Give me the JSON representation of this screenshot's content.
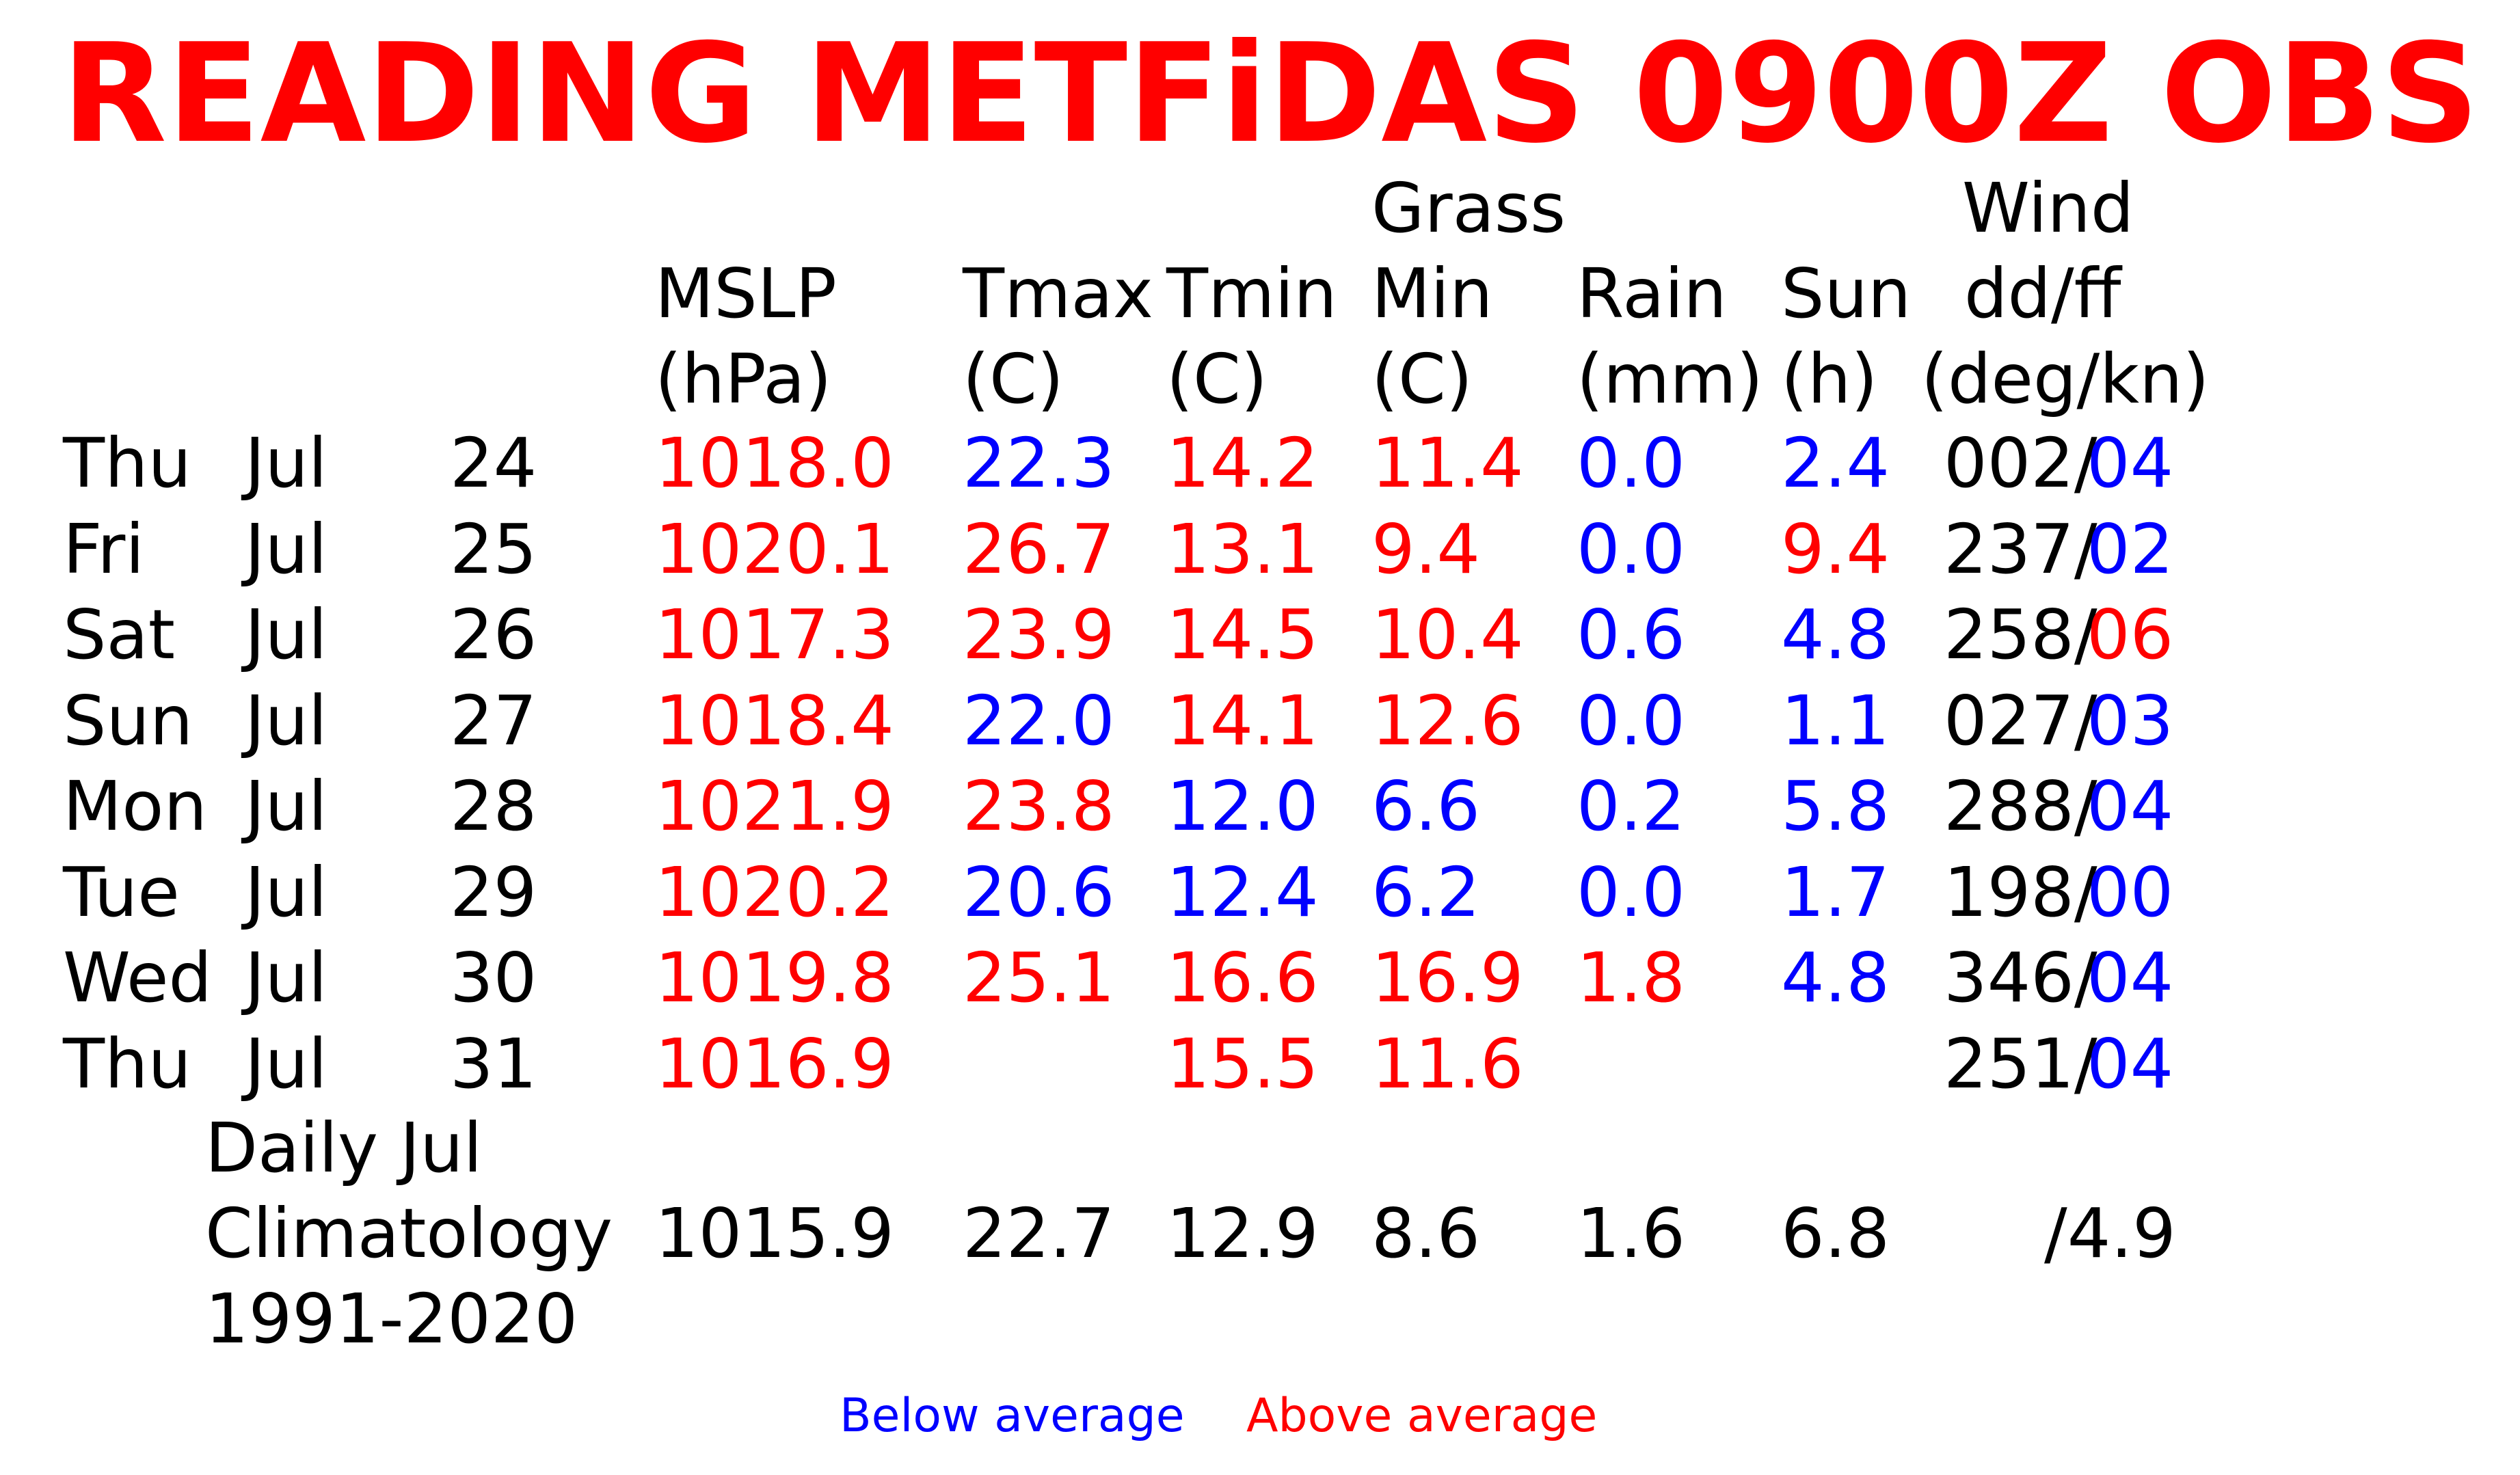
{
  "title": "READING METFiDAS 0900Z OBS",
  "colors": {
    "below": "#0000ff",
    "above": "#ff0000",
    "neutral": "#000000"
  },
  "headers": {
    "mslp": [
      "MSLP",
      "(hPa)"
    ],
    "tmax": [
      "Tmax",
      "(C)"
    ],
    "tmin": [
      "Tmin",
      "(C)"
    ],
    "grass": [
      "Grass",
      "Min",
      "(C)"
    ],
    "rain": [
      "Rain",
      "(mm)"
    ],
    "sun": [
      "Sun",
      "(h)"
    ],
    "wind": [
      "Wind",
      "dd/ff",
      "(deg/kn)"
    ]
  },
  "rows": [
    {
      "dow": "Thu",
      "mon": "Jul",
      "day": "24",
      "mslp": {
        "v": "1018.0",
        "c": "above"
      },
      "tmax": {
        "v": "22.3",
        "c": "below"
      },
      "tmin": {
        "v": "14.2",
        "c": "above"
      },
      "grass": {
        "v": "11.4",
        "c": "above"
      },
      "rain": {
        "v": "0.0",
        "c": "below"
      },
      "sun": {
        "v": "2.4",
        "c": "below"
      },
      "wdir": "002/",
      "wspd": {
        "v": "04",
        "c": "below"
      }
    },
    {
      "dow": "Fri",
      "mon": "Jul",
      "day": "25",
      "mslp": {
        "v": "1020.1",
        "c": "above"
      },
      "tmax": {
        "v": "26.7",
        "c": "above"
      },
      "tmin": {
        "v": "13.1",
        "c": "above"
      },
      "grass": {
        "v": "9.4",
        "c": "above"
      },
      "rain": {
        "v": "0.0",
        "c": "below"
      },
      "sun": {
        "v": "9.4",
        "c": "above"
      },
      "wdir": "237/",
      "wspd": {
        "v": "02",
        "c": "below"
      }
    },
    {
      "dow": "Sat",
      "mon": "Jul",
      "day": "26",
      "mslp": {
        "v": "1017.3",
        "c": "above"
      },
      "tmax": {
        "v": "23.9",
        "c": "above"
      },
      "tmin": {
        "v": "14.5",
        "c": "above"
      },
      "grass": {
        "v": "10.4",
        "c": "above"
      },
      "rain": {
        "v": "0.6",
        "c": "below"
      },
      "sun": {
        "v": "4.8",
        "c": "below"
      },
      "wdir": "258/",
      "wspd": {
        "v": "06",
        "c": "above"
      }
    },
    {
      "dow": "Sun",
      "mon": "Jul",
      "day": "27",
      "mslp": {
        "v": "1018.4",
        "c": "above"
      },
      "tmax": {
        "v": "22.0",
        "c": "below"
      },
      "tmin": {
        "v": "14.1",
        "c": "above"
      },
      "grass": {
        "v": "12.6",
        "c": "above"
      },
      "rain": {
        "v": "0.0",
        "c": "below"
      },
      "sun": {
        "v": "1.1",
        "c": "below"
      },
      "wdir": "027/",
      "wspd": {
        "v": "03",
        "c": "below"
      }
    },
    {
      "dow": "Mon",
      "mon": "Jul",
      "day": "28",
      "mslp": {
        "v": "1021.9",
        "c": "above"
      },
      "tmax": {
        "v": "23.8",
        "c": "above"
      },
      "tmin": {
        "v": "12.0",
        "c": "below"
      },
      "grass": {
        "v": "6.6",
        "c": "below"
      },
      "rain": {
        "v": "0.2",
        "c": "below"
      },
      "sun": {
        "v": "5.8",
        "c": "below"
      },
      "wdir": "288/",
      "wspd": {
        "v": "04",
        "c": "below"
      }
    },
    {
      "dow": "Tue",
      "mon": "Jul",
      "day": "29",
      "mslp": {
        "v": "1020.2",
        "c": "above"
      },
      "tmax": {
        "v": "20.6",
        "c": "below"
      },
      "tmin": {
        "v": "12.4",
        "c": "below"
      },
      "grass": {
        "v": "6.2",
        "c": "below"
      },
      "rain": {
        "v": "0.0",
        "c": "below"
      },
      "sun": {
        "v": "1.7",
        "c": "below"
      },
      "wdir": "198/",
      "wspd": {
        "v": "00",
        "c": "below"
      }
    },
    {
      "dow": "Wed",
      "mon": "Jul",
      "day": "30",
      "mslp": {
        "v": "1019.8",
        "c": "above"
      },
      "tmax": {
        "v": "25.1",
        "c": "above"
      },
      "tmin": {
        "v": "16.6",
        "c": "above"
      },
      "grass": {
        "v": "16.9",
        "c": "above"
      },
      "rain": {
        "v": "1.8",
        "c": "above"
      },
      "sun": {
        "v": "4.8",
        "c": "below"
      },
      "wdir": "346/",
      "wspd": {
        "v": "04",
        "c": "below"
      }
    },
    {
      "dow": "Thu",
      "mon": "Jul",
      "day": "31",
      "mslp": {
        "v": "1016.9",
        "c": "above"
      },
      "tmax": {
        "v": "",
        "c": "neutral"
      },
      "tmin": {
        "v": "15.5",
        "c": "above"
      },
      "grass": {
        "v": "11.6",
        "c": "above"
      },
      "rain": {
        "v": "",
        "c": "neutral"
      },
      "sun": {
        "v": "",
        "c": "neutral"
      },
      "wdir": "251/",
      "wspd": {
        "v": "04",
        "c": "below"
      }
    }
  ],
  "climatology": {
    "label": [
      "Daily Jul",
      "Climatology",
      "1991-2020"
    ],
    "mslp": "1015.9",
    "tmax": "22.7",
    "tmin": "12.9",
    "grass": "8.6",
    "rain": "1.6",
    "sun": "6.8",
    "wind": "/4.9"
  },
  "legend": {
    "below": "Below average",
    "above": "Above average"
  }
}
